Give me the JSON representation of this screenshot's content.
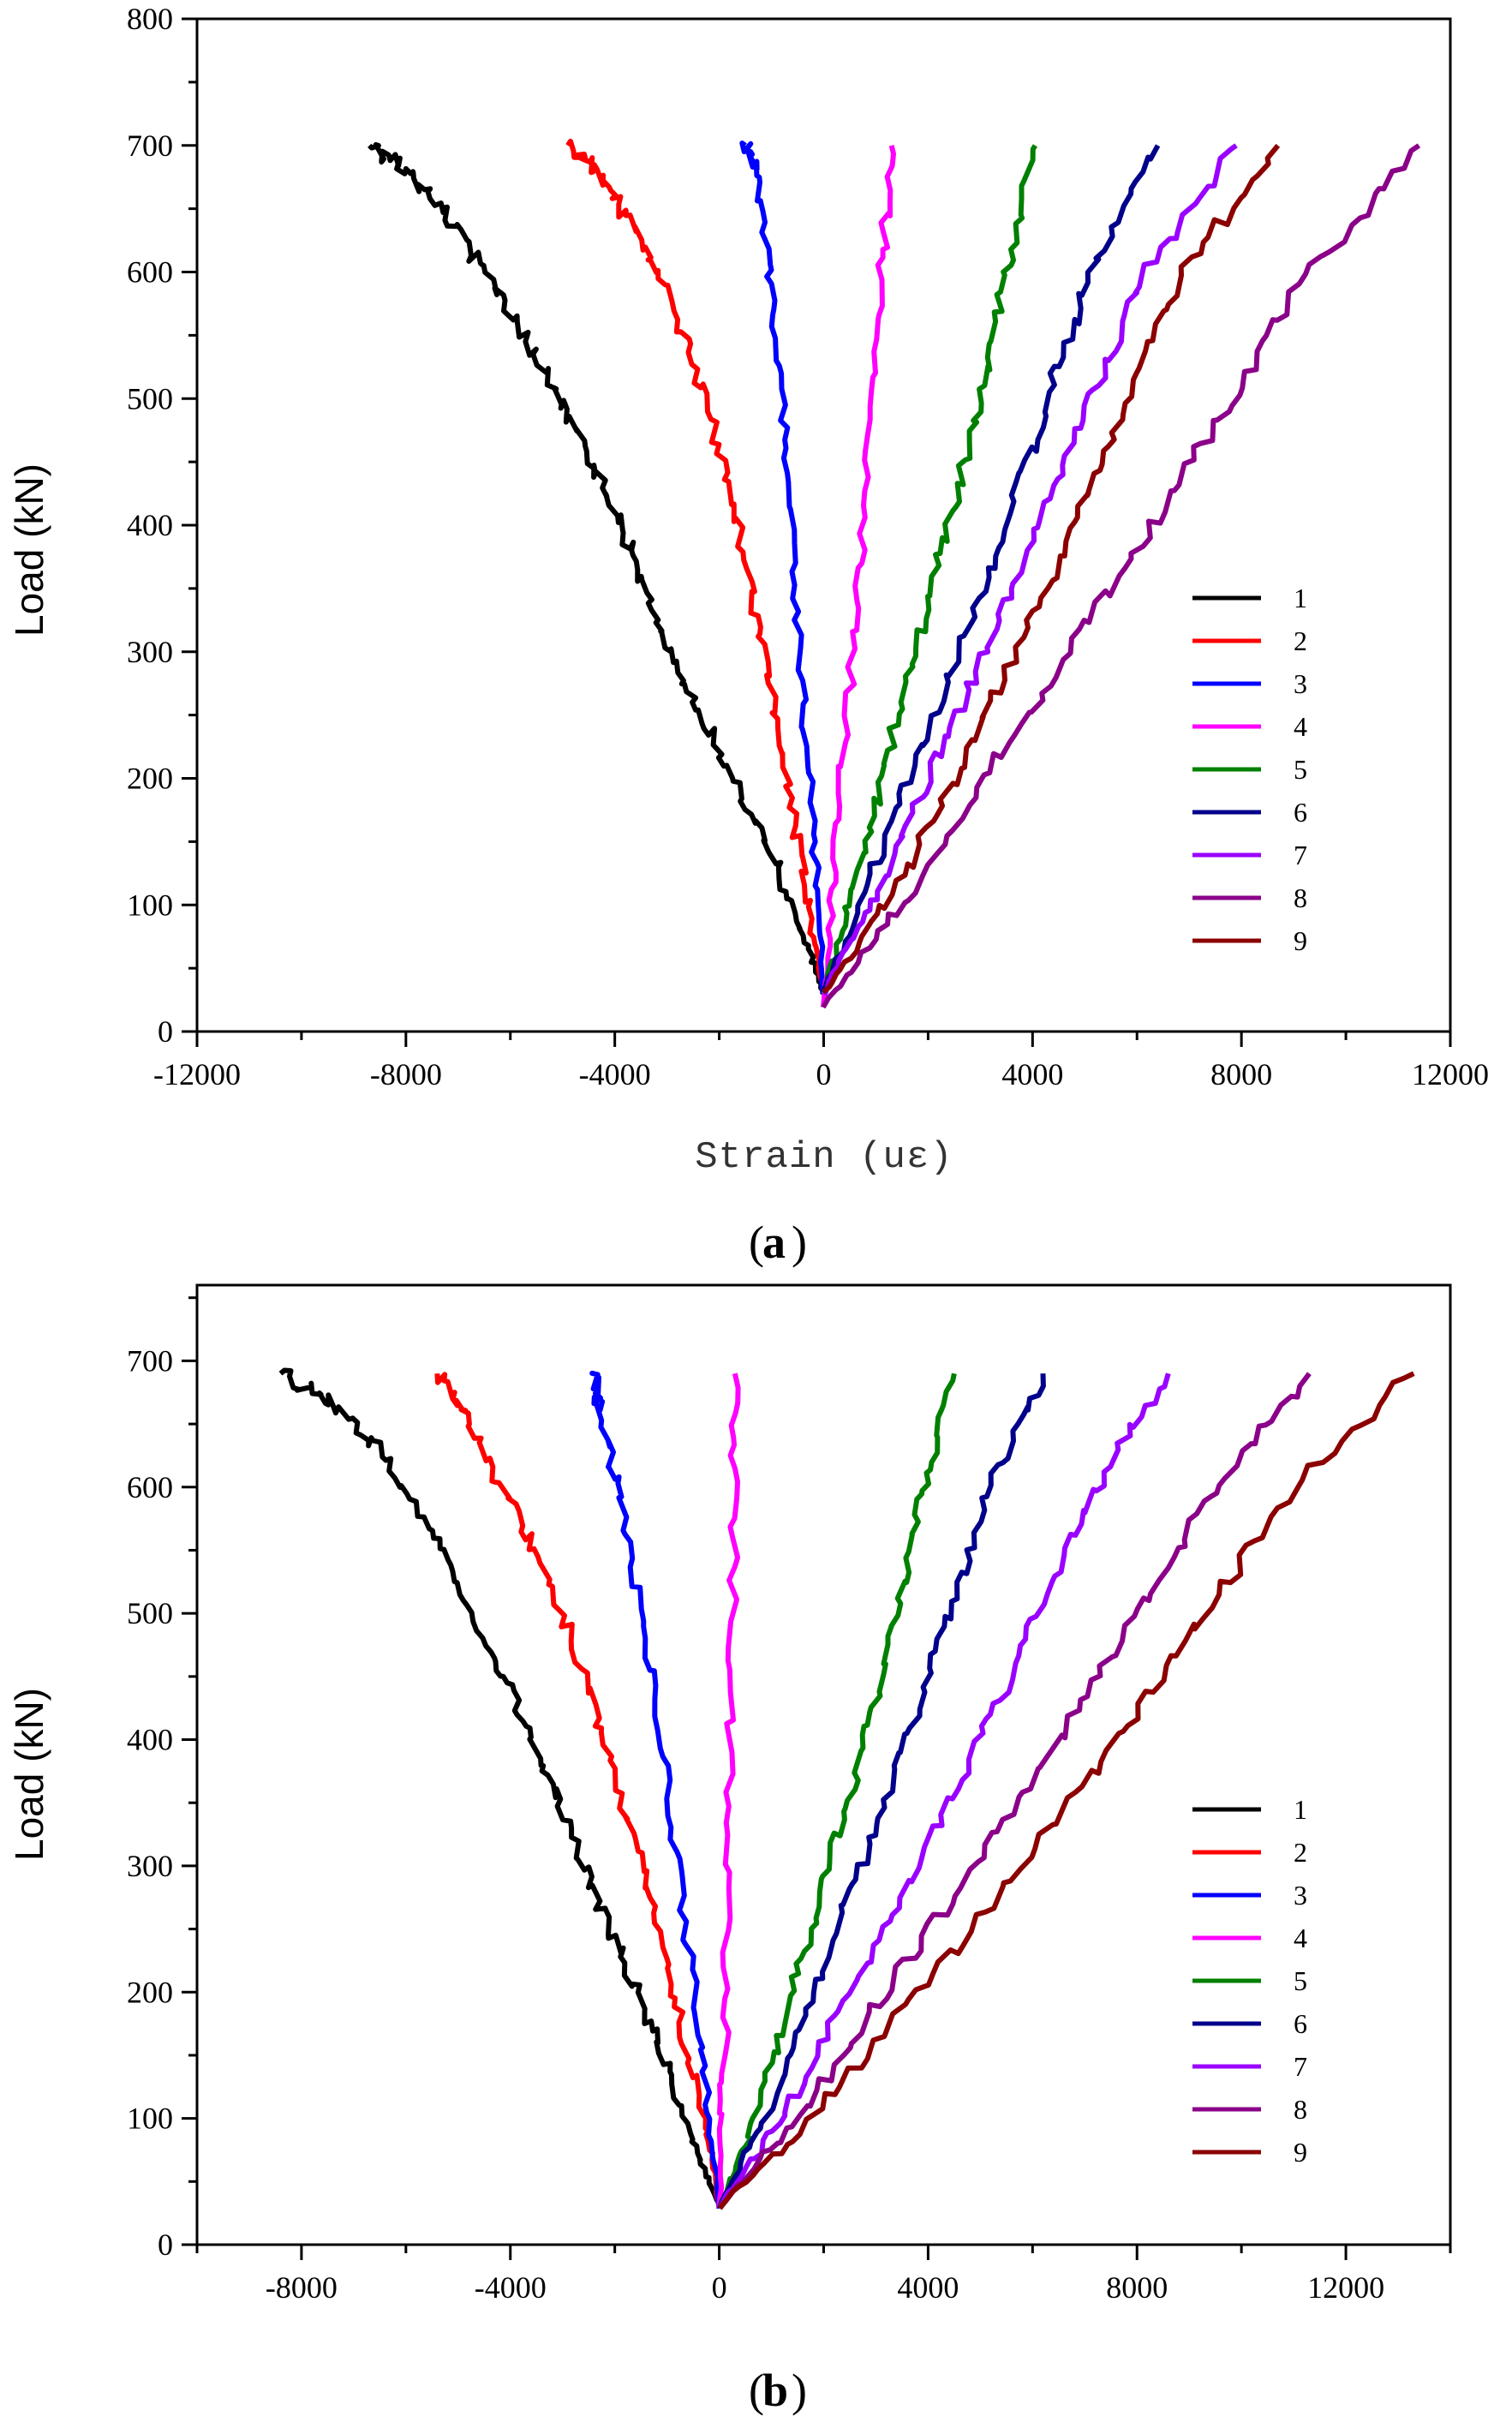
{
  "chart_data": [
    {
      "type": "line",
      "panel": "(a)",
      "panel_letter": "a",
      "ylabel": "Load (kN)",
      "xlabel": "Strain (uε)",
      "xlim": [
        -12000,
        12000
      ],
      "ylim": [
        0,
        800
      ],
      "xticks": [
        -12000,
        -8000,
        -4000,
        0,
        4000,
        8000,
        12000
      ],
      "yticks": [
        0,
        100,
        200,
        300,
        400,
        500,
        600,
        700,
        800
      ],
      "legend_position": "right",
      "series": [
        {
          "name": "1",
          "color": "#000000",
          "points": [
            [
              0,
              30
            ],
            [
              -250,
              60
            ],
            [
              -800,
              120
            ],
            [
              -1500,
              180
            ],
            [
              -2200,
              240
            ],
            [
              -2900,
              300
            ],
            [
              -3500,
              360
            ],
            [
              -4100,
              420
            ],
            [
              -4800,
              480
            ],
            [
              -5600,
              540
            ],
            [
              -6500,
              600
            ],
            [
              -7300,
              650
            ],
            [
              -8000,
              680
            ],
            [
              -8700,
              700
            ]
          ]
        },
        {
          "name": "2",
          "color": "#ff0000",
          "points": [
            [
              0,
              30
            ],
            [
              -300,
              100
            ],
            [
              -700,
              200
            ],
            [
              -1150,
              300
            ],
            [
              -1650,
              400
            ],
            [
              -2250,
              500
            ],
            [
              -2950,
              580
            ],
            [
              -3700,
              640
            ],
            [
              -4400,
              680
            ],
            [
              -4900,
              700
            ]
          ]
        },
        {
          "name": "3",
          "color": "#0000ff",
          "points": [
            [
              0,
              30
            ],
            [
              -200,
              150
            ],
            [
              -450,
              300
            ],
            [
              -700,
              450
            ],
            [
              -1000,
              580
            ],
            [
              -1300,
              680
            ],
            [
              -1500,
              700
            ]
          ]
        },
        {
          "name": "4",
          "color": "#ff00ff",
          "points": [
            [
              0,
              20
            ],
            [
              250,
              150
            ],
            [
              550,
              300
            ],
            [
              850,
              450
            ],
            [
              1100,
              600
            ],
            [
              1300,
              700
            ]
          ]
        },
        {
          "name": "5",
          "color": "#008000",
          "points": [
            [
              0,
              30
            ],
            [
              500,
              100
            ],
            [
              1100,
              200
            ],
            [
              1750,
              300
            ],
            [
              2400,
              400
            ],
            [
              3000,
              500
            ],
            [
              3500,
              600
            ],
            [
              4050,
              700
            ]
          ]
        },
        {
          "name": "6",
          "color": "#00008b",
          "points": [
            [
              0,
              30
            ],
            [
              700,
              100
            ],
            [
              1600,
              200
            ],
            [
              2600,
              300
            ],
            [
              3500,
              400
            ],
            [
              4300,
              500
            ],
            [
              5100,
              600
            ],
            [
              6400,
              700
            ]
          ]
        },
        {
          "name": "7",
          "color": "#9a00ff",
          "points": [
            [
              0,
              30
            ],
            [
              900,
              100
            ],
            [
              2000,
              200
            ],
            [
              3100,
              300
            ],
            [
              4100,
              400
            ],
            [
              5100,
              500
            ],
            [
              6200,
              600
            ],
            [
              7900,
              700
            ]
          ]
        },
        {
          "name": "8",
          "color": "#8b0089",
          "points": [
            [
              0,
              20
            ],
            [
              1500,
              100
            ],
            [
              3100,
              200
            ],
            [
              4700,
              300
            ],
            [
              6300,
              400
            ],
            [
              7800,
              500
            ],
            [
              9300,
              600
            ],
            [
              11400,
              700
            ]
          ]
        },
        {
          "name": "9",
          "color": "#8b0000",
          "points": [
            [
              0,
              30
            ],
            [
              1200,
              100
            ],
            [
              2500,
              200
            ],
            [
              3700,
              300
            ],
            [
              4800,
              400
            ],
            [
              5800,
              500
            ],
            [
              6900,
              600
            ],
            [
              8700,
              700
            ]
          ]
        }
      ]
    },
    {
      "type": "line",
      "panel": "(b)",
      "panel_letter": "b",
      "ylabel": "Load (kN)",
      "xlabel": "",
      "xlim": [
        -10000,
        14000
      ],
      "ylim": [
        0,
        760
      ],
      "xticks": [
        -8000,
        -4000,
        0,
        4000,
        8000,
        12000
      ],
      "yticks": [
        0,
        100,
        200,
        300,
        400,
        500,
        600,
        700
      ],
      "legend_position": "right",
      "series": [
        {
          "name": "1",
          "color": "#000000",
          "points": [
            [
              0,
              30
            ],
            [
              -500,
              80
            ],
            [
              -1100,
              150
            ],
            [
              -1800,
              220
            ],
            [
              -2500,
              290
            ],
            [
              -3200,
              360
            ],
            [
              -3900,
              430
            ],
            [
              -4700,
              500
            ],
            [
              -5600,
              570
            ],
            [
              -6500,
              630
            ],
            [
              -7500,
              670
            ],
            [
              -8400,
              690
            ]
          ]
        },
        {
          "name": "2",
          "color": "#ff0000",
          "points": [
            [
              0,
              30
            ],
            [
              -300,
              100
            ],
            [
              -900,
              200
            ],
            [
              -1500,
              300
            ],
            [
              -2200,
              400
            ],
            [
              -3000,
              500
            ],
            [
              -3900,
              580
            ],
            [
              -4800,
              650
            ],
            [
              -5400,
              690
            ]
          ]
        },
        {
          "name": "3",
          "color": "#0000ff",
          "points": [
            [
              0,
              30
            ],
            [
              -300,
              150
            ],
            [
              -800,
              300
            ],
            [
              -1300,
              450
            ],
            [
              -1850,
              580
            ],
            [
              -2300,
              660
            ],
            [
              -2400,
              690
            ]
          ]
        },
        {
          "name": "4",
          "color": "#ff00ff",
          "points": [
            [
              0,
              30
            ],
            [
              100,
              150
            ],
            [
              200,
              350
            ],
            [
              280,
              550
            ],
            [
              300,
              690
            ]
          ]
        },
        {
          "name": "5",
          "color": "#008000",
          "points": [
            [
              0,
              30
            ],
            [
              700,
              100
            ],
            [
              1400,
              200
            ],
            [
              2100,
              300
            ],
            [
              2800,
              400
            ],
            [
              3400,
              500
            ],
            [
              3900,
              600
            ],
            [
              4500,
              690
            ]
          ]
        },
        {
          "name": "6",
          "color": "#00008b",
          "points": [
            [
              0,
              30
            ],
            [
              900,
              100
            ],
            [
              1800,
              200
            ],
            [
              2700,
              300
            ],
            [
              3600,
              400
            ],
            [
              4400,
              500
            ],
            [
              5200,
              600
            ],
            [
              6200,
              690
            ]
          ]
        },
        {
          "name": "7",
          "color": "#9a00ff",
          "points": [
            [
              0,
              30
            ],
            [
              1200,
              100
            ],
            [
              2500,
              200
            ],
            [
              3800,
              300
            ],
            [
              5000,
              400
            ],
            [
              6100,
              500
            ],
            [
              7200,
              600
            ],
            [
              8600,
              690
            ]
          ]
        },
        {
          "name": "8",
          "color": "#8b0089",
          "points": [
            [
              0,
              30
            ],
            [
              1500,
              100
            ],
            [
              3200,
              200
            ],
            [
              4900,
              300
            ],
            [
              6500,
              400
            ],
            [
              8000,
              500
            ],
            [
              9500,
              600
            ],
            [
              11300,
              690
            ]
          ]
        },
        {
          "name": "9",
          "color": "#8b0000",
          "points": [
            [
              0,
              30
            ],
            [
              1800,
              100
            ],
            [
              3800,
              200
            ],
            [
              5800,
              300
            ],
            [
              7600,
              400
            ],
            [
              9300,
              500
            ],
            [
              11000,
              600
            ],
            [
              13300,
              690
            ]
          ]
        }
      ]
    }
  ]
}
